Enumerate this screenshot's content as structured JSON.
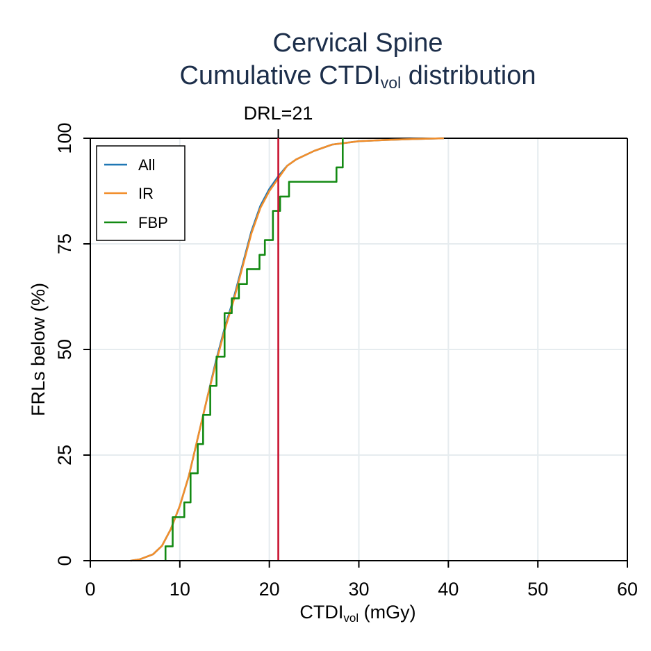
{
  "chart_data": {
    "type": "line",
    "title_line1": "Cervical Spine",
    "title_line2_prefix": "Cumulative CTDI",
    "title_line2_sub": "vol",
    "title_line2_suffix": " distribution",
    "xlabel_prefix": "CTDI",
    "xlabel_sub": "vol",
    "xlabel_suffix": " (mGy)",
    "ylabel": "FRLs below (%)",
    "xlim": [
      0,
      60
    ],
    "ylim": [
      0,
      100
    ],
    "xticks": [
      0,
      10,
      20,
      30,
      40,
      50,
      60
    ],
    "yticks": [
      0,
      25,
      50,
      75,
      100
    ],
    "grid": true,
    "legend_position": "top-left",
    "reference_line": {
      "label": "DRL=21",
      "x": 21,
      "color": "#c8102e"
    },
    "series": [
      {
        "name": "All",
        "color": "#1f77b4",
        "step": false,
        "x": [
          4.5,
          5.5,
          7,
          8,
          9,
          10,
          11,
          12,
          13,
          14,
          15,
          16,
          17,
          18,
          19,
          20,
          21,
          22,
          23,
          25,
          27,
          30,
          33,
          36,
          39.5
        ],
        "y": [
          0,
          0.3,
          1.5,
          3.5,
          7.5,
          13,
          20,
          29,
          38,
          47,
          55,
          62,
          70,
          78,
          84,
          88,
          91,
          93.5,
          95,
          97,
          98.5,
          99.3,
          99.6,
          99.8,
          100
        ]
      },
      {
        "name": "IR",
        "color": "#f28e2b",
        "step": false,
        "x": [
          4.5,
          5.5,
          7,
          8,
          9,
          10,
          11,
          12,
          13,
          14,
          15,
          16,
          17,
          18,
          19,
          20,
          21,
          22,
          23,
          25,
          27,
          30,
          33,
          36,
          39.5
        ],
        "y": [
          0,
          0.3,
          1.5,
          3.5,
          7.5,
          13,
          20,
          29,
          38,
          46.5,
          54.5,
          61.5,
          69.5,
          77.5,
          83.5,
          87.5,
          90.5,
          93.5,
          95,
          97,
          98.5,
          99.3,
          99.6,
          99.8,
          100
        ]
      },
      {
        "name": "FBP",
        "color": "#138a13",
        "step": true,
        "x": [
          8.4,
          9.2,
          10.5,
          11.2,
          12,
          12.6,
          13.4,
          14.1,
          15,
          15.8,
          16.6,
          17.5,
          18.9,
          19.5,
          20.4,
          21.2,
          22.2,
          27.5,
          28.2
        ],
        "y": [
          3.4,
          10.3,
          13.8,
          20.7,
          27.6,
          34.5,
          41.4,
          48.3,
          58.6,
          62.1,
          65.5,
          69.0,
          72.4,
          75.9,
          82.8,
          86.2,
          89.7,
          93.1,
          96.6
        ],
        "y_end": 100
      }
    ]
  }
}
